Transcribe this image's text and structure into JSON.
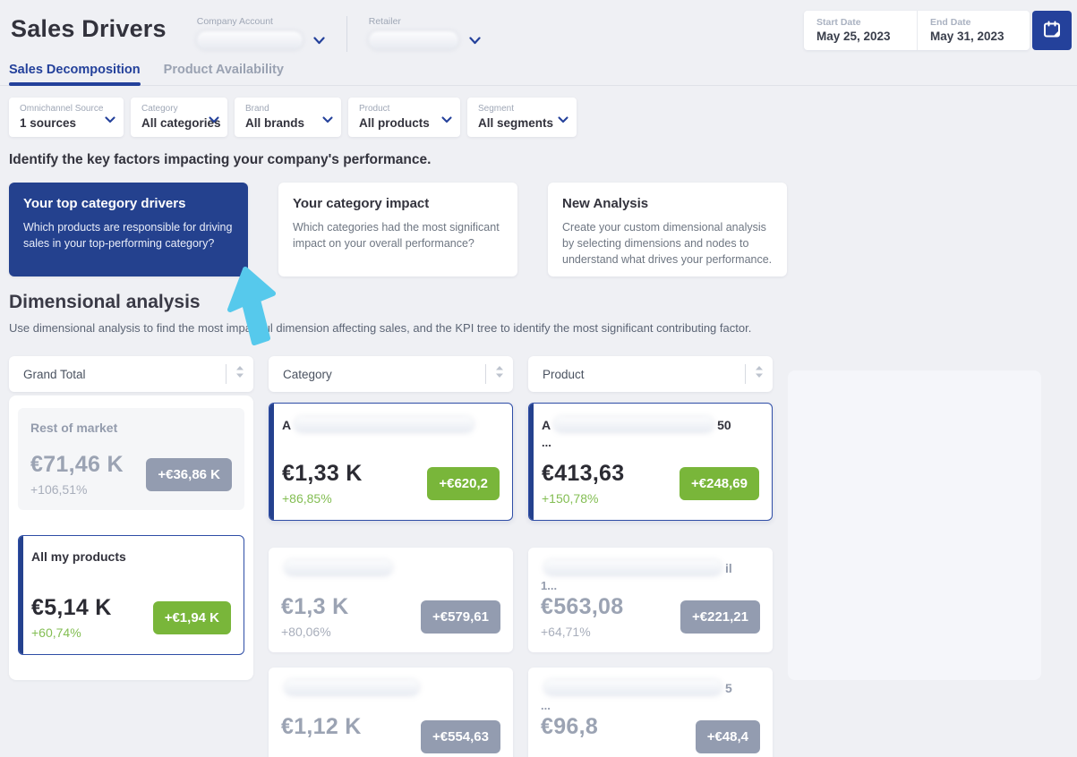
{
  "page": {
    "title": "Sales Drivers"
  },
  "header": {
    "company_account_label": "Company Account",
    "retailer_label": "Retailer",
    "date_range": {
      "start_label": "Start Date",
      "start_value": "May 25, 2023",
      "end_label": "End Date",
      "end_value": "May 31, 2023"
    }
  },
  "tabs": [
    {
      "label": "Sales Decomposition",
      "active": true
    },
    {
      "label": "Product Availability",
      "active": false
    }
  ],
  "filters": [
    {
      "label": "Omnichannel Source",
      "value": "1 sources"
    },
    {
      "label": "Category",
      "value": "All categories"
    },
    {
      "label": "Brand",
      "value": "All brands"
    },
    {
      "label": "Product",
      "value": "All products"
    },
    {
      "label": "Segment",
      "value": "All segments"
    }
  ],
  "intro_text": "Identify the key factors impacting your company's performance.",
  "analysis_cards": [
    {
      "title": "Your top category drivers",
      "description": "Which products are responsible for driving sales in your top-performing category?",
      "selected": true
    },
    {
      "title": "Your category impact",
      "description": "Which categories had the most significant impact on your overall performance?",
      "selected": false
    },
    {
      "title": "New Analysis",
      "description": "Create your custom dimensional analysis by selecting dimensions and nodes to understand what drives your performance.",
      "selected": false
    }
  ],
  "dimensional_analysis": {
    "title": "Dimensional analysis",
    "subtitle": "Use dimensional analysis to find the most impactful dimension affecting sales, and the KPI tree to identify the most significant contributing factor.",
    "columns": [
      {
        "header": "Grand Total",
        "panel": true,
        "cards": [
          {
            "title": "Rest of market",
            "redacted": false,
            "value": "€71,46 K",
            "pct": "+106,51%",
            "badge": "+€36,86 K",
            "tone": "gray",
            "ghost": true,
            "selected": false
          },
          {
            "title": "All my products",
            "redacted": false,
            "value": "€5,14 K",
            "pct": "+60,74%",
            "badge": "+€1,94 K",
            "tone": "green",
            "ghost": false,
            "selected": true
          }
        ]
      },
      {
        "header": "Category",
        "panel": false,
        "cards": [
          {
            "redacted": true,
            "title_prefix": "A",
            "title_suffix": "",
            "title_line2": "",
            "redacted_width": 200,
            "value": "€1,33 K",
            "pct": "+86,85%",
            "badge": "+€620,2",
            "tone": "green",
            "ghost": false,
            "selected": true
          },
          {
            "redacted": true,
            "title_prefix": "",
            "title_suffix": "",
            "title_line2": "",
            "redacted_width": 120,
            "value": "€1,3 K",
            "pct": "+80,06%",
            "badge": "+€579,61",
            "tone": "gray",
            "ghost": false,
            "selected": false
          },
          {
            "redacted": true,
            "title_prefix": "",
            "title_suffix": "",
            "title_line2": "",
            "redacted_width": 150,
            "value": "€1,12 K",
            "pct": "",
            "badge": "+€554,63",
            "tone": "gray",
            "ghost": false,
            "selected": false
          }
        ]
      },
      {
        "header": "Product",
        "panel": false,
        "cards": [
          {
            "redacted": true,
            "title_prefix": "A",
            "title_suffix": "50",
            "title_line2": "...",
            "redacted_width": 178,
            "value": "€413,63",
            "pct": "+150,78%",
            "badge": "+€248,69",
            "tone": "green",
            "ghost": false,
            "selected": true
          },
          {
            "redacted": true,
            "title_prefix": "",
            "title_suffix": "il",
            "title_line2": "1...",
            "redacted_width": 198,
            "value": "€563,08",
            "pct": "+64,71%",
            "badge": "+€221,21",
            "tone": "gray",
            "ghost": false,
            "selected": false
          },
          {
            "redacted": true,
            "title_prefix": "",
            "title_suffix": "5",
            "title_line2": "...",
            "redacted_width": 198,
            "value": "€96,8",
            "pct": "",
            "badge": "+€48,4",
            "tone": "gray",
            "ghost": false,
            "selected": false
          }
        ]
      }
    ]
  },
  "colors": {
    "brand_blue": "#24419B",
    "selected_card_blue": "#24418E",
    "green_badge": "#79B63A",
    "gray_badge": "#939CB0",
    "cursor_blue": "#56C9EC",
    "page_background": "#EFF0F4"
  },
  "icons": {
    "calendar_button": "calendar-icon",
    "dropdown": "chevron-down-icon",
    "column_sort": "sort-icon",
    "cursor": "cursor-pointer-icon"
  }
}
